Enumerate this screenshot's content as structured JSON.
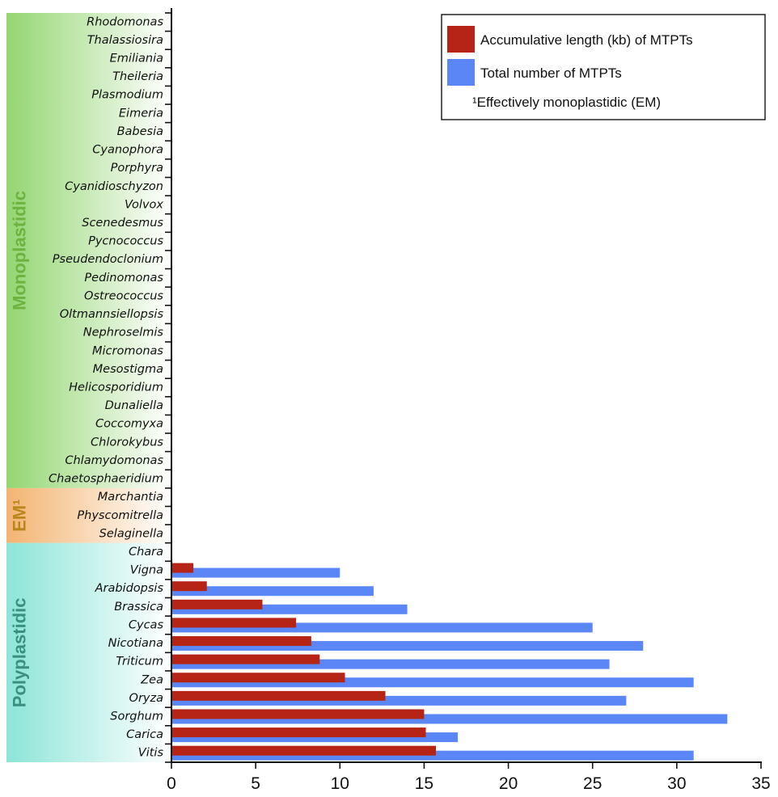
{
  "chart_data": {
    "type": "bar",
    "orientation": "horizontal",
    "categories": [
      "Rhodomonas",
      "Thalassiosira",
      "Emiliania",
      "Theileria",
      "Plasmodium",
      "Eimeria",
      "Babesia",
      "Cyanophora",
      "Porphyra",
      "Cyanidioschyzon",
      "Volvox",
      "Scenedesmus",
      "Pycnococcus",
      "Pseudendoclonium",
      "Pedinomonas",
      "Ostreococcus",
      "Oltmannsiellopsis",
      "Nephroselmis",
      "Micromonas",
      "Mesostigma",
      "Helicosporidium",
      "Dunaliella",
      "Coccomyxa",
      "Chlorokybus",
      "Chlamydomonas",
      "Chaetosphaeridium",
      "Marchantia",
      "Physcomitrella",
      "Selaginella",
      "Chara",
      "Vigna",
      "Arabidopsis",
      "Brassica",
      "Cycas",
      "Nicotiana",
      "Triticum",
      "Zea",
      "Oryza",
      "Sorghum",
      "Carica",
      "Vitis"
    ],
    "series": [
      {
        "name": "Accumulative length (kb) of MTPTs",
        "color": "#b52415",
        "values": [
          0,
          0,
          0,
          0,
          0,
          0,
          0,
          0,
          0,
          0,
          0,
          0,
          0,
          0,
          0,
          0,
          0,
          0,
          0,
          0,
          0,
          0,
          0,
          0,
          0,
          0,
          0,
          0,
          0,
          0,
          1.3,
          2.1,
          5.4,
          7.4,
          8.3,
          8.8,
          10.3,
          12.7,
          15.0,
          15.1,
          15.7
        ]
      },
      {
        "name": "Total number of MTPTs",
        "color": "#5b86f5",
        "values": [
          0,
          0,
          0,
          0,
          0,
          0,
          0,
          0,
          0,
          0,
          0,
          0,
          0,
          0,
          0,
          0,
          0,
          0,
          0,
          0,
          0,
          0,
          0,
          0,
          0,
          0,
          0,
          0,
          0,
          0,
          10,
          12,
          14,
          25,
          28,
          26,
          31,
          27,
          33,
          17,
          31
        ]
      }
    ],
    "xlim": [
      0,
      35
    ],
    "xticks": [
      0,
      5,
      10,
      15,
      20,
      25,
      30,
      35
    ],
    "groups": [
      {
        "label": "Monoplastidic",
        "first": "Rhodomonas",
        "last": "Chaetosphaeridium",
        "color": "#8ed36a",
        "text_color": "#6db33f"
      },
      {
        "label": "EM¹",
        "first": "Marchantia",
        "last": "Selaginella",
        "color": "#f2b06a",
        "text_color": "#b8861b"
      },
      {
        "label": "Polyplastidic",
        "first": "Chara",
        "last": "Vitis",
        "color": "#86e3d6",
        "text_color": "#3a8f7f"
      }
    ],
    "legend_position": "top-right",
    "legend_footnote": "¹Effectively monoplastidic (EM)",
    "grid": false
  }
}
